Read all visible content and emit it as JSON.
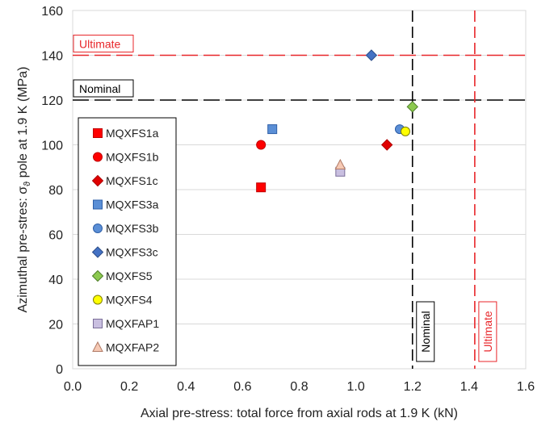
{
  "chart_data": {
    "type": "scatter",
    "xlabel": "Axial pre-stress: total force from axial rods at 1.9 K (kN)",
    "ylabel_parts": [
      "Azimuthal pre-stres: σ",
      "ϑ",
      " pole at 1.9 K (MPa)"
    ],
    "xlim": [
      0,
      1.6
    ],
    "ylim": [
      0,
      160
    ],
    "x_ticks": [
      "0.0",
      "0.2",
      "0.4",
      "0.6",
      "0.8",
      "1.0",
      "1.2",
      "1.4",
      "1.6"
    ],
    "y_ticks": [
      "0",
      "20",
      "40",
      "60",
      "80",
      "100",
      "120",
      "140",
      "160"
    ],
    "grid": "horizontal",
    "legend_position": "left",
    "reference_lines": [
      {
        "label": "Ultimate",
        "orientation": "horizontal",
        "value": 140,
        "color": "#e8262a"
      },
      {
        "label": "Nominal",
        "orientation": "horizontal",
        "value": 120,
        "color": "#000000"
      },
      {
        "label": "Nominal",
        "orientation": "vertical",
        "value": 1.2,
        "color": "#000000"
      },
      {
        "label": "Ultimate",
        "orientation": "vertical",
        "value": 1.42,
        "color": "#e8262a"
      }
    ],
    "series": [
      {
        "name": "MQXFS1a",
        "marker": "square",
        "color": "#ff0000",
        "stroke": "#c00000",
        "points": [
          [
            0.665,
            81
          ]
        ]
      },
      {
        "name": "MQXFS1b",
        "marker": "circle",
        "color": "#ff0000",
        "stroke": "#c00000",
        "points": [
          [
            0.665,
            100
          ]
        ]
      },
      {
        "name": "MQXFS1c",
        "marker": "diamond",
        "color": "#e00000",
        "stroke": "#b00000",
        "points": [
          [
            1.11,
            100
          ]
        ]
      },
      {
        "name": "MQXFS3a",
        "marker": "square",
        "color": "#5b8fd6",
        "stroke": "#2e5fa8",
        "points": [
          [
            0.705,
            107
          ]
        ]
      },
      {
        "name": "MQXFS3b",
        "marker": "circle",
        "color": "#5b8fd6",
        "stroke": "#2e5fa8",
        "points": [
          [
            1.155,
            107
          ]
        ]
      },
      {
        "name": "MQXFS3c",
        "marker": "diamond",
        "color": "#4472c4",
        "stroke": "#2e4f8a",
        "points": [
          [
            1.055,
            140
          ]
        ]
      },
      {
        "name": "MQXFS5",
        "marker": "diamond",
        "color": "#8cc94f",
        "stroke": "#4f7f2a",
        "points": [
          [
            1.2,
            117
          ]
        ]
      },
      {
        "name": "MQXFS4",
        "marker": "circle",
        "color": "#ffff00",
        "stroke": "#7f7f00",
        "points": [
          [
            1.175,
            106
          ]
        ]
      },
      {
        "name": "MQXFAP1",
        "marker": "square",
        "color": "#c9bfe0",
        "stroke": "#7a6e99",
        "points": [
          [
            0.945,
            88
          ]
        ]
      },
      {
        "name": "MQXFAP2",
        "marker": "triangle",
        "color": "#f6c9b4",
        "stroke": "#b07a66",
        "points": [
          [
            0.945,
            91
          ]
        ]
      }
    ]
  }
}
